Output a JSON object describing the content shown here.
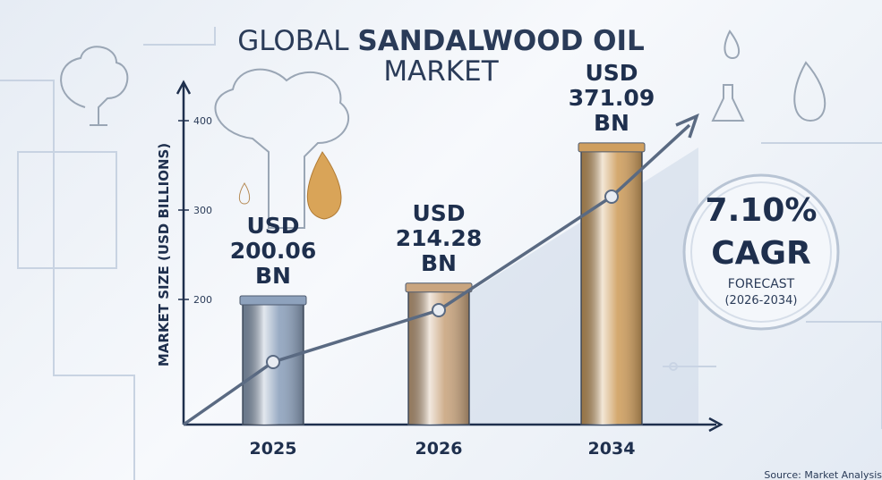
{
  "chart_data": {
    "type": "bar",
    "title_light": "GLOBAL",
    "title_bold": "SANDALWOOD OIL",
    "title_line2": "MARKET",
    "y_label": "MARKET SIZE (USD BILLIONS)",
    "categories": [
      "2025",
      "2026",
      "2034"
    ],
    "values": [
      200.06,
      214.28,
      371.09
    ],
    "value_labels": [
      "USD 200.06 BN",
      "USD 214.28 BN",
      "USD 371.09 BN"
    ],
    "colors": [
      "#8ea2bd",
      "#c9a57f",
      "#cf9f5f"
    ],
    "ylim": [
      60,
      440
    ],
    "yticks": [
      200,
      300,
      400
    ],
    "cagr": "7.10%",
    "cagr_label": "CAGR",
    "forecast": "FORECAST",
    "forecast_period": "(2026-2034)",
    "source": "Source: Market Analysis"
  }
}
